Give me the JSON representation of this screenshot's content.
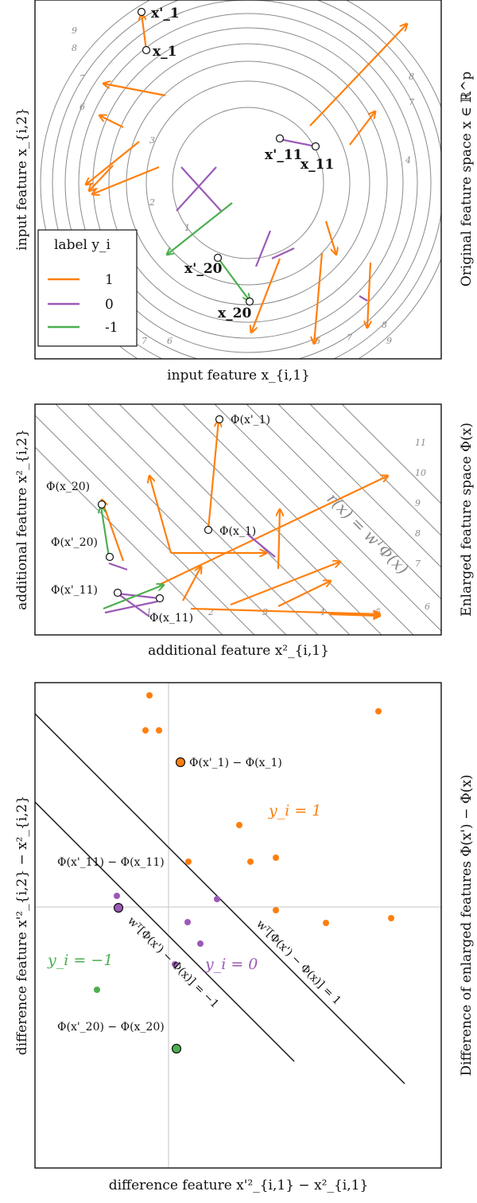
{
  "colors": {
    "label_1": "#ff7f0e",
    "label_0": "#9b59b6",
    "label_neg1": "#4caf50",
    "contour": "#8a8a8a"
  },
  "panel1": {
    "xlabel": "input feature x_{i,1}",
    "ylabel": "input feature x_{i,2}",
    "side_title": "Original feature space x ∈ ℝ^p",
    "legend": {
      "title": "label y_i",
      "entries": [
        "1",
        "0",
        "-1"
      ]
    },
    "points": [
      "x'_1",
      "x_1",
      "x'_11",
      "x_11",
      "x'_20",
      "x_20"
    ],
    "contour_labels": [
      "1",
      "2",
      "3",
      "4",
      "5",
      "6",
      "7",
      "8",
      "9"
    ]
  },
  "panel2": {
    "xlabel": "additional feature x²_{i,1}",
    "ylabel": "additional feature x²_{i,2}",
    "side_title": "Enlarged feature space Φ(x)",
    "points": [
      "Φ(x'_1)",
      "Φ(x_1)",
      "Φ(x_20)",
      "Φ(x'_20)",
      "Φ(x'_11)",
      "Φ(x_11)"
    ],
    "formula": "r(x) = wᵀΦ(x)",
    "contour_labels": [
      "1",
      "2",
      "3",
      "4",
      "5",
      "6",
      "7",
      "8",
      "9",
      "10",
      "11"
    ]
  },
  "panel3": {
    "xlabel": "difference feature x'²_{i,1} − x²_{i,1}",
    "ylabel": "difference feature x'²_{i,2} − x²_{i,2}",
    "side_title": "Difference of enlarged features Φ(x') − Φ(x)",
    "annotations": [
      "Φ(x'_1) − Φ(x_1)",
      "Φ(x'_11) − Φ(x_11)",
      "Φ(x'_20) − Φ(x_20)"
    ],
    "class_labels": [
      "y_i = 1",
      "y_i = 0",
      "y_i = −1"
    ],
    "line_labels": [
      "wᵀ[Φ(x') − Φ(x)] = 1",
      "wᵀ[Φ(x') − Φ(x)] = −1"
    ]
  }
}
